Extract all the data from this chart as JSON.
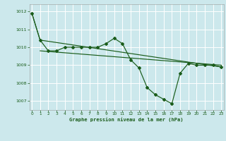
{
  "title": "Graphe pression niveau de la mer (hPa)",
  "background_color": "#cce8ec",
  "grid_color": "#ffffff",
  "line_color": "#1a5c1a",
  "xlim": [
    -0.3,
    23.3
  ],
  "ylim": [
    1006.5,
    1012.4
  ],
  "yticks": [
    1007,
    1008,
    1009,
    1010,
    1011,
    1012
  ],
  "xticks": [
    0,
    1,
    2,
    3,
    4,
    5,
    6,
    7,
    8,
    9,
    10,
    11,
    12,
    13,
    14,
    15,
    16,
    17,
    18,
    19,
    20,
    21,
    22,
    23
  ],
  "series1_x": [
    0,
    1,
    2,
    3,
    4,
    5,
    6,
    7,
    8,
    9,
    10,
    11,
    12,
    13,
    14,
    15,
    16,
    17,
    18,
    19,
    20,
    21,
    22,
    23
  ],
  "series1_y": [
    1011.9,
    1010.4,
    1009.8,
    1009.8,
    1010.0,
    1010.0,
    1010.0,
    1010.0,
    1010.0,
    1010.2,
    1010.5,
    1010.2,
    1009.3,
    1008.85,
    1007.75,
    1007.35,
    1007.1,
    1006.85,
    1008.55,
    1009.1,
    1009.0,
    1009.0,
    1009.0,
    1008.9
  ],
  "series2_x": [
    0,
    1,
    23
  ],
  "series2_y": [
    1011.9,
    1010.4,
    1008.9
  ],
  "series3_x": [
    1,
    23
  ],
  "series3_y": [
    1009.8,
    1009.0
  ]
}
